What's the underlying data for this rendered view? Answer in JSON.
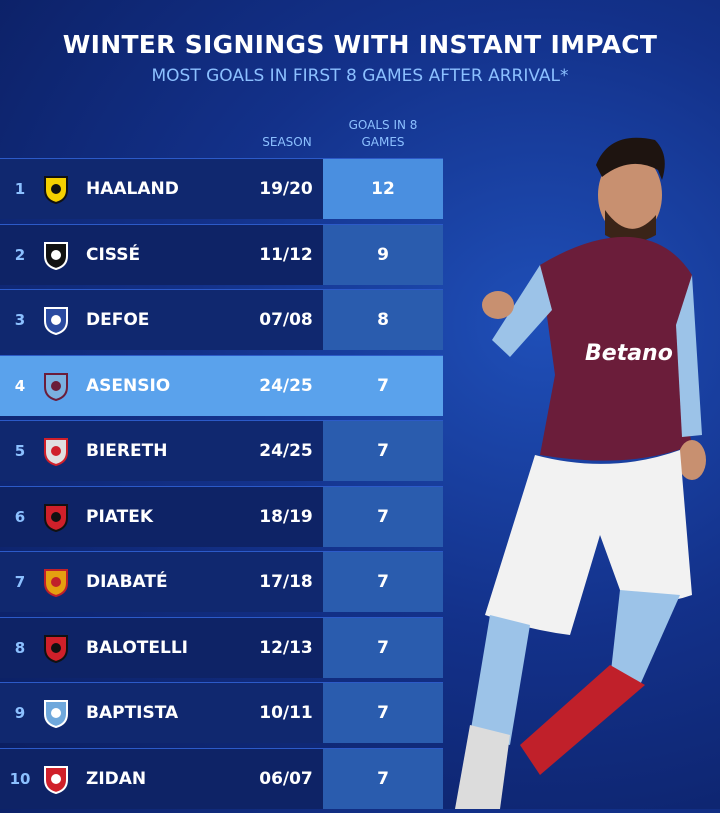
{
  "header": {
    "title": "WINTER SIGNINGS WITH INSTANT IMPACT",
    "subtitle": "MOST GOALS IN FIRST 8 GAMES AFTER ARRIVAL*"
  },
  "table": {
    "columns": {
      "season": "SEASON",
      "goals": "GOALS IN 8 GAMES"
    },
    "rows": [
      {
        "rank": 1,
        "player": "HAALAND",
        "season": "19/20",
        "goals": 12
      },
      {
        "rank": 2,
        "player": "CISSÉ",
        "season": "11/12",
        "goals": 9
      },
      {
        "rank": 3,
        "player": "DEFOE",
        "season": "07/08",
        "goals": 8
      },
      {
        "rank": 4,
        "player": "ASENSIO",
        "season": "24/25",
        "goals": 7
      },
      {
        "rank": 5,
        "player": "BIERETH",
        "season": "24/25",
        "goals": 7
      },
      {
        "rank": 6,
        "player": "PIATEK",
        "season": "18/19",
        "goals": 7
      },
      {
        "rank": 7,
        "player": "DIABATÉ",
        "season": "17/18",
        "goals": 7
      },
      {
        "rank": 8,
        "player": "BALOTELLI",
        "season": "12/13",
        "goals": 7
      },
      {
        "rank": 9,
        "player": "BAPTISTA",
        "season": "10/11",
        "goals": 7
      },
      {
        "rank": 10,
        "player": "ZIDAN",
        "season": "06/07",
        "goals": 7
      }
    ]
  }
}
